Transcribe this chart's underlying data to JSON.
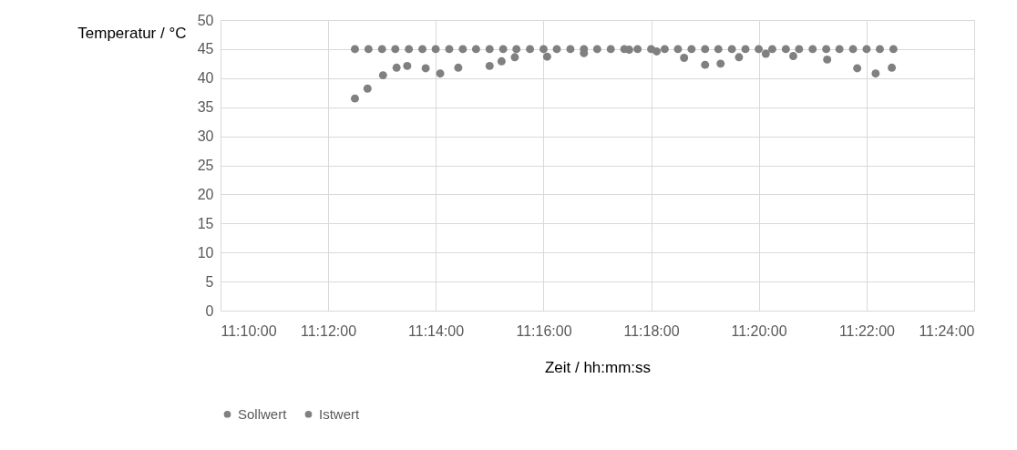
{
  "chart_data": {
    "type": "scatter",
    "xlabel": "Zeit / hh:mm:ss",
    "ylabel": "Temperatur / °C",
    "xlim": [
      11.1667,
      11.4
    ],
    "xticks": [
      {
        "value": 11.1667,
        "label": "11:10:00"
      },
      {
        "value": 11.2,
        "label": "11:12:00"
      },
      {
        "value": 11.2333,
        "label": "11:14:00"
      },
      {
        "value": 11.2667,
        "label": "11:16:00"
      },
      {
        "value": 11.3,
        "label": "11:18:00"
      },
      {
        "value": 11.3333,
        "label": "11:20:00"
      },
      {
        "value": 11.3667,
        "label": "11:22:00"
      },
      {
        "value": 11.4,
        "label": "11:24:00"
      }
    ],
    "ylim": [
      0,
      50
    ],
    "yticks": [
      0,
      5,
      10,
      15,
      20,
      25,
      30,
      35,
      40,
      45,
      50
    ],
    "grid": true,
    "legend": "bottom",
    "marker": "circle",
    "series": [
      {
        "name": "Sollwert",
        "color": "#808080",
        "x": [
          11.2083,
          11.2125,
          11.2167,
          11.2208,
          11.225,
          11.2292,
          11.2333,
          11.2375,
          11.2417,
          11.2458,
          11.25,
          11.2542,
          11.2583,
          11.2625,
          11.2667,
          11.2708,
          11.275,
          11.2792,
          11.2833,
          11.2875,
          11.2917,
          11.2958,
          11.3,
          11.3042,
          11.3083,
          11.3125,
          11.3167,
          11.3208,
          11.325,
          11.3292,
          11.3333,
          11.3375,
          11.3417,
          11.3458,
          11.35,
          11.3542,
          11.3583,
          11.3625,
          11.3667,
          11.3708,
          11.375
        ],
        "values": [
          45,
          45,
          45,
          45,
          45,
          45,
          45,
          45,
          45,
          45,
          45,
          45,
          45,
          45,
          45,
          45,
          45,
          45,
          45,
          45,
          45,
          45,
          45,
          45,
          45,
          45,
          45,
          45,
          45,
          45,
          45,
          45,
          45,
          45,
          45,
          45,
          45,
          45,
          45,
          45,
          45
        ]
      },
      {
        "name": "Istwert",
        "color": "#808080",
        "x": [
          11.2083,
          11.2122,
          11.217,
          11.2212,
          11.2245,
          11.2302,
          11.2347,
          11.2403,
          11.25,
          11.2537,
          11.2578,
          11.2678,
          11.2792,
          11.2932,
          11.3017,
          11.3102,
          11.3167,
          11.3215,
          11.3272,
          11.3355,
          11.344,
          11.3545,
          11.3638,
          11.3695,
          11.3745
        ],
        "values": [
          36.5,
          38.2,
          40.5,
          41.8,
          42.1,
          41.7,
          40.8,
          41.8,
          42.1,
          42.9,
          43.6,
          43.7,
          44.3,
          44.9,
          44.6,
          43.5,
          42.3,
          42.5,
          43.6,
          44.2,
          43.8,
          43.2,
          41.7,
          40.8,
          41.8
        ]
      }
    ]
  }
}
